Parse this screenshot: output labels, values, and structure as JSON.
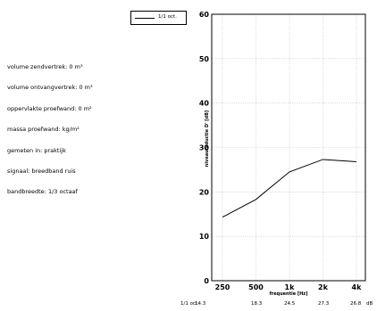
{
  "info": {
    "lines": [
      "volume zendvertrek: 0 m³",
      "volume ontvangvertrek: 0 m³",
      "oppervlakte proefwand: 0 m²",
      "massa proefwand: kg/m²",
      "gemeten in: praktijk",
      "signaal: breedband ruis",
      "bandbreedte: 1/3 octaaf"
    ]
  },
  "table": {
    "label": "1/1 oct.",
    "values": [
      "14.3",
      "18.3",
      "24.5",
      "27.3",
      "26.8"
    ],
    "unit": "dB"
  },
  "chart_data": {
    "type": "line",
    "categories": [
      "250",
      "500",
      "1k",
      "2k",
      "4k"
    ],
    "series": [
      {
        "name": "1/1 oct.",
        "values": [
          14.3,
          18.3,
          24.5,
          27.3,
          26.8
        ]
      }
    ],
    "yticks": [
      "0",
      "10",
      "20",
      "30",
      "40",
      "50",
      "60"
    ],
    "ylim": [
      0,
      60
    ],
    "xlabel": "frequentie [Hz]",
    "ylabel": "niveaureductie D' [dB]",
    "grid": true,
    "legend": "top-left",
    "line_color": "#000000"
  }
}
